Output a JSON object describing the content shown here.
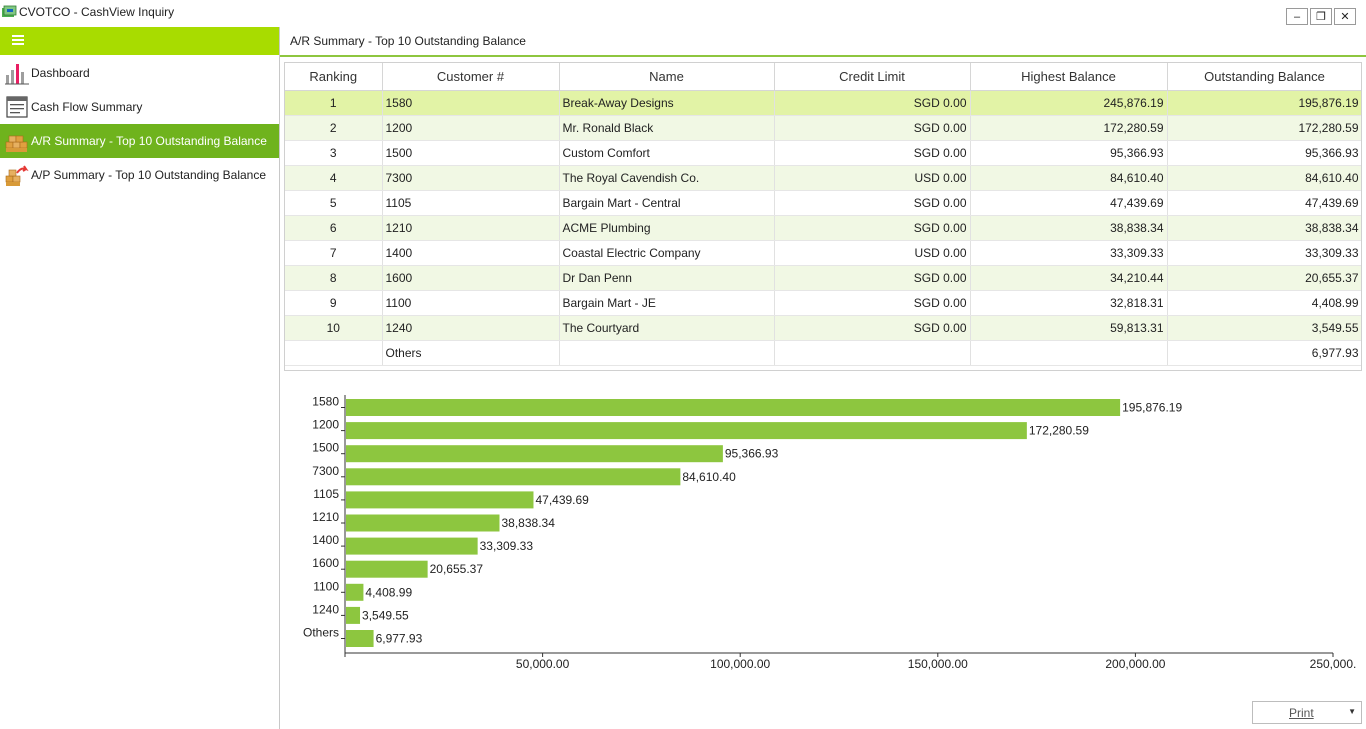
{
  "window": {
    "title": "CVOTCO - CashView Inquiry",
    "min_glyph": "‒",
    "restore_glyph": "❐",
    "close_glyph": "✕"
  },
  "sidebar": {
    "items": [
      {
        "label": "Dashboard",
        "icon": "bar-chart-icon"
      },
      {
        "label": "Cash Flow Summary",
        "icon": "document-list-icon"
      },
      {
        "label": "A/R Summary - Top 10 Outstanding Balance",
        "icon": "boxes-in-icon",
        "active": true
      },
      {
        "label": "A/P Summary - Top 10 Outstanding Balance",
        "icon": "boxes-out-icon"
      }
    ]
  },
  "main": {
    "header": "A/R Summary - Top 10 Outstanding Balance"
  },
  "table": {
    "columns": [
      "Ranking",
      "Customer #",
      "Name",
      "Credit Limit",
      "Highest Balance",
      "Outstanding Balance"
    ],
    "rows": [
      [
        "1",
        "1580",
        "Break-Away Designs",
        "SGD 0.00",
        "245,876.19",
        "195,876.19"
      ],
      [
        "2",
        "1200",
        "Mr. Ronald Black",
        "SGD 0.00",
        "172,280.59",
        "172,280.59"
      ],
      [
        "3",
        "1500",
        "Custom Comfort",
        "SGD 0.00",
        "95,366.93",
        "95,366.93"
      ],
      [
        "4",
        "7300",
        "The Royal Cavendish Co.",
        "USD 0.00",
        "84,610.40",
        "84,610.40"
      ],
      [
        "5",
        "1105",
        "Bargain Mart - Central",
        "SGD 0.00",
        "47,439.69",
        "47,439.69"
      ],
      [
        "6",
        "1210",
        "ACME Plumbing",
        "SGD 0.00",
        "38,838.34",
        "38,838.34"
      ],
      [
        "7",
        "1400",
        "Coastal Electric Company",
        "USD 0.00",
        "33,309.33",
        "33,309.33"
      ],
      [
        "8",
        "1600",
        "Dr Dan Penn",
        "SGD 0.00",
        "34,210.44",
        "20,655.37"
      ],
      [
        "9",
        "1100",
        "Bargain Mart - JE",
        "SGD 0.00",
        "32,818.31",
        "4,408.99"
      ],
      [
        "10",
        "1240",
        "The Courtyard",
        "SGD 0.00",
        "59,813.31",
        "3,549.55"
      ],
      [
        "",
        "Others",
        "",
        "",
        "",
        "6,977.93"
      ]
    ]
  },
  "chart_data": {
    "type": "bar",
    "orientation": "horizontal",
    "categories": [
      "1580",
      "1200",
      "1500",
      "7300",
      "1105",
      "1210",
      "1400",
      "1600",
      "1100",
      "1240",
      "Others"
    ],
    "values": [
      195876.19,
      172280.59,
      95366.93,
      84610.4,
      47439.69,
      38838.34,
      33309.33,
      20655.37,
      4408.99,
      3549.55,
      6977.93
    ],
    "value_labels": [
      "195,876.19",
      "172,280.59",
      "95,366.93",
      "84,610.40",
      "47,439.69",
      "38,838.34",
      "33,309.33",
      "20,655.37",
      "4,408.99",
      "3,549.55",
      "6,977.93"
    ],
    "xlim": [
      0,
      250000
    ],
    "x_ticks": [
      50000,
      100000,
      150000,
      200000,
      250000
    ],
    "x_tick_labels": [
      "50,000.00",
      "100,000.00",
      "150,000.00",
      "200,000.00",
      "250,000."
    ],
    "bar_color": "#8dc63f",
    "grid": false
  },
  "print_button": {
    "label": "Print"
  }
}
